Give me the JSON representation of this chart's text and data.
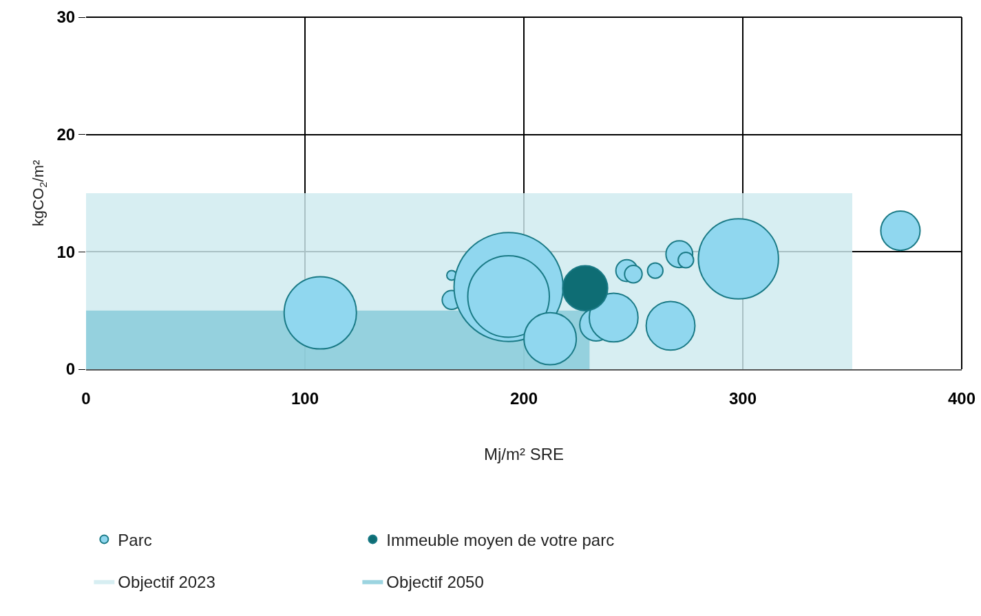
{
  "chart_data": {
    "type": "bubble",
    "xlabel": "Mj/m² SRE",
    "ylabel": "kgCO$_{2}$/m²",
    "xlim": [
      0,
      400
    ],
    "ylim": [
      0,
      30
    ],
    "xticks": [
      0,
      100,
      200,
      300,
      400
    ],
    "yticks": [
      0,
      10,
      20,
      30
    ],
    "grid": true,
    "legend": "bottom",
    "series": [
      {
        "name": "Objectif 2023",
        "type": "area",
        "color": "#d7eef2",
        "x": [
          0,
          350
        ],
        "values": [
          15,
          15
        ]
      },
      {
        "name": "Objectif 2050",
        "type": "area",
        "color": "#9cd4e0",
        "x": [
          0,
          230
        ],
        "values": [
          5,
          5
        ]
      },
      {
        "name": "Parc",
        "color": "#90d7ef",
        "x": [
          107,
          167,
          167,
          193,
          193,
          212,
          233,
          241,
          247,
          250,
          260,
          267,
          271,
          274,
          298,
          372
        ],
        "marker": "circle",
        "values": [
          4.8,
          5.9,
          8.0,
          7.0,
          6.2,
          2.6,
          3.8,
          4.4,
          8.4,
          8.1,
          8.4,
          3.7,
          9.8,
          9.3,
          9.4,
          11.8
        ],
        "sizes": [
          0.44,
          0.03,
          0.008,
          1,
          0.56,
          0.23,
          0.09,
          0.2,
          0.04,
          0.026,
          0.02,
          0.2,
          0.06,
          0.02,
          0.54,
          0.13
        ]
      },
      {
        "name": "Immeuble moyen de votre parc",
        "color": "#0e6d74",
        "x": [
          228
        ],
        "marker": "circle",
        "values": [
          6.9
        ],
        "sizes": [
          0.17
        ]
      }
    ]
  }
}
